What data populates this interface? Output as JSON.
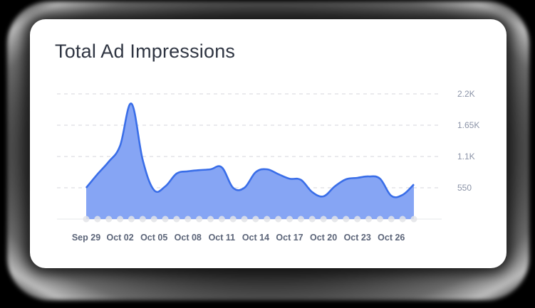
{
  "card": {
    "title": "Total Ad Impressions"
  },
  "colors": {
    "line": "#3a6ee8",
    "area": "#86a5f4",
    "grid": "#d4d6db",
    "dot": "#e3e4e8",
    "y_tick_text": "#8b93a7",
    "x_tick_text": "#5b6478",
    "title": "#2f3542"
  },
  "chart_data": {
    "type": "area",
    "title": "Total Ad Impressions",
    "xlabel": "",
    "ylabel": "",
    "ylim": [
      0,
      2200
    ],
    "y_ticks": [
      550,
      1100,
      1650,
      2200
    ],
    "y_tick_labels": [
      "550",
      "1.1K",
      "1.65K",
      "2.2K"
    ],
    "y_axis_position": "right",
    "grid": "horizontal-dashed",
    "legend": "none",
    "x_tick_labels": [
      "Sep 29",
      "Oct 02",
      "Oct 05",
      "Oct 08",
      "Oct 11",
      "Oct 14",
      "Oct 17",
      "Oct 20",
      "Oct 23",
      "Oct 26"
    ],
    "x": [
      "Sep 29",
      "Sep 30",
      "Oct 01",
      "Oct 02",
      "Oct 03",
      "Oct 04",
      "Oct 05",
      "Oct 06",
      "Oct 07",
      "Oct 08",
      "Oct 09",
      "Oct 10",
      "Oct 11",
      "Oct 12",
      "Oct 13",
      "Oct 14",
      "Oct 15",
      "Oct 16",
      "Oct 17",
      "Oct 18",
      "Oct 19",
      "Oct 20",
      "Oct 21",
      "Oct 22",
      "Oct 23",
      "Oct 24",
      "Oct 25",
      "Oct 26",
      "Oct 27",
      "Oct 28"
    ],
    "series": [
      {
        "name": "Impressions",
        "values": [
          550,
          790,
          1010,
          1290,
          2030,
          1040,
          510,
          575,
          800,
          840,
          860,
          875,
          910,
          550,
          550,
          825,
          875,
          790,
          710,
          690,
          475,
          400,
          575,
          700,
          725,
          750,
          710,
          410,
          425,
          610
        ]
      }
    ]
  }
}
